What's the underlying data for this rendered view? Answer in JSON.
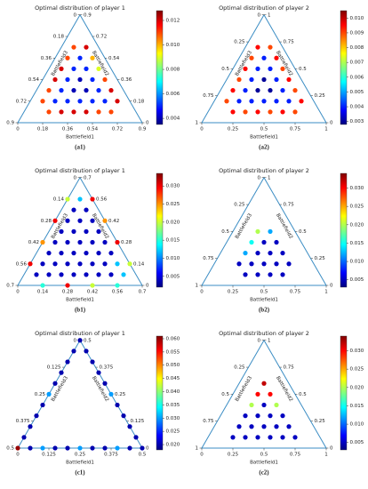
{
  "chart_data": [
    {
      "type": "ternary",
      "title": "Optimal distribution of player 1",
      "panel_label": "(a1)",
      "xlabel": "Battlefield1",
      "rlabel": "Battlefield2",
      "llabel": "Battlefield3",
      "lim": [
        0,
        0.9
      ],
      "ticks": [
        0,
        0.18,
        0.36,
        0.54,
        0.72,
        0.9
      ],
      "clim": [
        0.0035,
        0.0128
      ],
      "cticks": [
        0.004,
        0.006,
        0.008,
        {
          "value": 0.01,
          "label": "0.010"
        },
        0.012
      ],
      "points": [
        [
          0.09,
          0.18,
          0.011
        ],
        [
          0.09,
          0.27,
          0.011
        ],
        [
          0.09,
          0.36,
          0.012
        ],
        [
          0.09,
          0.45,
          0.012
        ],
        [
          0.09,
          0.54,
          0.011
        ],
        [
          0.09,
          0.63,
          0.011
        ],
        [
          0.18,
          0.09,
          0.011
        ],
        [
          0.18,
          0.18,
          0.005
        ],
        [
          0.18,
          0.27,
          0.005
        ],
        [
          0.18,
          0.36,
          0.005
        ],
        [
          0.18,
          0.45,
          0.005
        ],
        [
          0.18,
          0.54,
          0.005
        ],
        [
          0.18,
          0.63,
          0.012
        ],
        [
          0.27,
          0.09,
          0.012
        ],
        [
          0.27,
          0.18,
          0.005
        ],
        [
          0.27,
          0.27,
          0.004
        ],
        [
          0.27,
          0.36,
          0.004
        ],
        [
          0.27,
          0.45,
          0.005
        ],
        [
          0.27,
          0.54,
          0.01
        ],
        [
          0.36,
          0.09,
          0.012
        ],
        [
          0.36,
          0.18,
          0.005
        ],
        [
          0.36,
          0.27,
          0.004
        ],
        [
          0.36,
          0.36,
          0.005
        ],
        [
          0.36,
          0.45,
          0.009
        ],
        [
          0.45,
          0.09,
          0.012
        ],
        [
          0.45,
          0.18,
          0.005
        ],
        [
          0.45,
          0.27,
          0.005
        ],
        [
          0.45,
          0.36,
          0.011
        ],
        [
          0.54,
          0.09,
          0.011
        ],
        [
          0.54,
          0.18,
          0.005
        ],
        [
          0.54,
          0.27,
          0.012
        ],
        [
          0.63,
          0.09,
          0.011
        ],
        [
          0.63,
          0.18,
          0.012
        ]
      ]
    },
    {
      "type": "ternary",
      "title": "Optimal distribution of player 2",
      "panel_label": "(a2)",
      "xlabel": "Battlefield1",
      "rlabel": "Battlefield2",
      "llabel": "Battlefield3",
      "lim": [
        0,
        1
      ],
      "ticks": [
        0,
        0.25,
        0.5,
        0.75,
        1
      ],
      "clim": [
        0.0028,
        0.0105
      ],
      "cticks": [
        0.003,
        0.004,
        0.005,
        0.006,
        0.007,
        0.008,
        0.009,
        {
          "value": 0.01,
          "label": "0.010"
        }
      ],
      "points": [
        [
          0.1,
          0.2,
          0.009
        ],
        [
          0.1,
          0.3,
          0.0095
        ],
        [
          0.1,
          0.4,
          0.009
        ],
        [
          0.1,
          0.5,
          0.0095
        ],
        [
          0.1,
          0.6,
          0.009
        ],
        [
          0.1,
          0.7,
          0.0095
        ],
        [
          0.2,
          0.1,
          0.0095
        ],
        [
          0.2,
          0.2,
          0.004
        ],
        [
          0.2,
          0.3,
          0.004
        ],
        [
          0.2,
          0.4,
          0.004
        ],
        [
          0.2,
          0.5,
          0.004
        ],
        [
          0.2,
          0.6,
          0.004
        ],
        [
          0.2,
          0.7,
          0.009
        ],
        [
          0.3,
          0.1,
          0.009
        ],
        [
          0.3,
          0.2,
          0.004
        ],
        [
          0.3,
          0.3,
          0.003
        ],
        [
          0.3,
          0.4,
          0.003
        ],
        [
          0.3,
          0.5,
          0.004
        ],
        [
          0.3,
          0.6,
          0.0095
        ],
        [
          0.4,
          0.1,
          0.0095
        ],
        [
          0.4,
          0.2,
          0.004
        ],
        [
          0.4,
          0.3,
          0.003
        ],
        [
          0.4,
          0.4,
          0.004
        ],
        [
          0.4,
          0.5,
          0.009
        ],
        [
          0.5,
          0.1,
          0.009
        ],
        [
          0.5,
          0.2,
          0.004
        ],
        [
          0.5,
          0.3,
          0.004
        ],
        [
          0.5,
          0.4,
          0.0095
        ],
        [
          0.6,
          0.1,
          0.0095
        ],
        [
          0.6,
          0.2,
          0.004
        ],
        [
          0.6,
          0.3,
          0.009
        ],
        [
          0.7,
          0.1,
          0.009
        ],
        [
          0.7,
          0.2,
          0.0095
        ]
      ]
    },
    {
      "type": "ternary",
      "title": "Optimal distribution of player 1",
      "panel_label": "(b1)",
      "xlabel": "Battlefield1",
      "rlabel": "Battlefield2",
      "llabel": "Battlefield3",
      "lim": [
        0,
        0.7
      ],
      "ticks": [
        0,
        0.14,
        0.28,
        0.42,
        0.56,
        0.7
      ],
      "clim": [
        0.002,
        0.0335
      ],
      "cticks": [
        0.005,
        {
          "value": 0.01,
          "label": "0.010"
        },
        0.015,
        {
          "value": 0.02,
          "label": "0.020"
        },
        0.025,
        {
          "value": 0.03,
          "label": "0.030"
        }
      ],
      "points": [
        [
          0.07,
          0.07,
          0.004
        ],
        [
          0.07,
          0.14,
          0.004
        ],
        [
          0.07,
          0.21,
          0.004
        ],
        [
          0.07,
          0.28,
          0.004
        ],
        [
          0.07,
          0.35,
          0.004
        ],
        [
          0.07,
          0.42,
          0.004
        ],
        [
          0.07,
          0.49,
          0.004
        ],
        [
          0.07,
          0.56,
          0.012
        ],
        [
          0.14,
          0.07,
          0.004
        ],
        [
          0.14,
          0.14,
          0.004
        ],
        [
          0.14,
          0.21,
          0.004
        ],
        [
          0.14,
          0.28,
          0.004
        ],
        [
          0.14,
          0.35,
          0.004
        ],
        [
          0.14,
          0.42,
          0.004
        ],
        [
          0.14,
          0.49,
          0.004
        ],
        [
          0.21,
          0.07,
          0.004
        ],
        [
          0.21,
          0.14,
          0.004
        ],
        [
          0.21,
          0.21,
          0.004
        ],
        [
          0.21,
          0.28,
          0.004
        ],
        [
          0.21,
          0.35,
          0.004
        ],
        [
          0.21,
          0.42,
          0.004
        ],
        [
          0.28,
          0.07,
          0.004
        ],
        [
          0.28,
          0.14,
          0.004
        ],
        [
          0.28,
          0.21,
          0.004
        ],
        [
          0.28,
          0.28,
          0.004
        ],
        [
          0.28,
          0.35,
          0.004
        ],
        [
          0.35,
          0.07,
          0.004
        ],
        [
          0.35,
          0.14,
          0.004
        ],
        [
          0.35,
          0.21,
          0.004
        ],
        [
          0.35,
          0.28,
          0.004
        ],
        [
          0.42,
          0.07,
          0.004
        ],
        [
          0.42,
          0.14,
          0.004
        ],
        [
          0.42,
          0.21,
          0.004
        ],
        [
          0.49,
          0.07,
          0.004
        ],
        [
          0.49,
          0.14,
          0.012
        ],
        [
          0.56,
          0.07,
          0.012
        ],
        [
          0,
          0.14,
          0.03
        ],
        [
          0,
          0.28,
          0.025
        ],
        [
          0,
          0.42,
          0.03
        ],
        [
          0,
          0.56,
          0.02
        ],
        [
          0.56,
          0.14,
          0.02
        ],
        [
          0.42,
          0.28,
          0.03
        ],
        [
          0.28,
          0.42,
          0.025
        ],
        [
          0.14,
          0.56,
          0.03
        ],
        [
          0.14,
          0,
          0.015
        ],
        [
          0.28,
          0,
          0.03
        ],
        [
          0.42,
          0,
          0.02
        ],
        [
          0.56,
          0,
          0.015
        ]
      ]
    },
    {
      "type": "ternary",
      "title": "Optimal distribution of player 2",
      "panel_label": "(b2)",
      "xlabel": "Battlefield1",
      "rlabel": "Battlefield2",
      "llabel": "Battlefield3",
      "lim": [
        0,
        1
      ],
      "ticks": [
        0,
        0.25,
        0.5,
        0.75,
        1
      ],
      "clim": [
        0.003,
        0.034
      ],
      "cticks": [
        0.005,
        {
          "value": 0.01,
          "label": "0.010"
        },
        0.015,
        {
          "value": 0.02,
          "label": "0.020"
        },
        0.025,
        {
          "value": 0.03,
          "label": "0.030"
        }
      ],
      "points": [
        [
          0.3,
          0.1,
          0.005
        ],
        [
          0.4,
          0.1,
          0.005
        ],
        [
          0.5,
          0.1,
          0.005
        ],
        [
          0.6,
          0.1,
          0.005
        ],
        [
          0.2,
          0.2,
          0.005
        ],
        [
          0.3,
          0.2,
          0.005
        ],
        [
          0.4,
          0.2,
          0.005
        ],
        [
          0.5,
          0.2,
          0.005
        ],
        [
          0.6,
          0.2,
          0.005
        ],
        [
          0.2,
          0.3,
          0.012
        ],
        [
          0.3,
          0.3,
          0.005
        ],
        [
          0.4,
          0.3,
          0.005
        ],
        [
          0.5,
          0.3,
          0.005
        ],
        [
          0.2,
          0.4,
          0.015
        ],
        [
          0.3,
          0.4,
          0.005
        ],
        [
          0.4,
          0.4,
          0.005
        ],
        [
          0.2,
          0.5,
          0.02
        ],
        [
          0.3,
          0.5,
          0.012
        ]
      ]
    },
    {
      "type": "ternary",
      "title": "Optimal distribution of player 1",
      "panel_label": "(c1)",
      "xlabel": "Battlefield1",
      "rlabel": "Battlefield2",
      "llabel": "Battlefield3",
      "lim": [
        0,
        0.5
      ],
      "ticks": [
        0,
        0.125,
        0.25,
        0.375,
        0.5
      ],
      "clim": [
        0.018,
        0.061
      ],
      "cticks": [
        {
          "value": 0.02,
          "label": "0.020"
        },
        0.025,
        {
          "value": 0.03,
          "label": "0.030"
        },
        0.035,
        {
          "value": 0.04,
          "label": "0.040"
        },
        0.045,
        {
          "value": 0.05,
          "label": "0.050"
        },
        0.055,
        {
          "value": 0.06,
          "label": "0.060"
        }
      ],
      "points": [
        [
          0,
          0.05,
          0.02
        ],
        [
          0,
          0.1,
          0.02
        ],
        [
          0,
          0.15,
          0.02
        ],
        [
          0,
          0.2,
          0.02
        ],
        [
          0,
          0.25,
          0.03
        ],
        [
          0,
          0.3,
          0.02
        ],
        [
          0,
          0.35,
          0.02
        ],
        [
          0,
          0.4,
          0.02
        ],
        [
          0,
          0.45,
          0.02
        ],
        [
          0.45,
          0.05,
          0.02
        ],
        [
          0.4,
          0.1,
          0.02
        ],
        [
          0.35,
          0.15,
          0.02
        ],
        [
          0.3,
          0.2,
          0.02
        ],
        [
          0.25,
          0.25,
          0.03
        ],
        [
          0.2,
          0.3,
          0.02
        ],
        [
          0.15,
          0.35,
          0.02
        ],
        [
          0.1,
          0.4,
          0.02
        ],
        [
          0.05,
          0.45,
          0.02
        ],
        [
          0.05,
          0,
          0.02
        ],
        [
          0.1,
          0,
          0.03
        ],
        [
          0.15,
          0,
          0.02
        ],
        [
          0.2,
          0,
          0.02
        ],
        [
          0.25,
          0,
          0.03
        ],
        [
          0.3,
          0,
          0.02
        ],
        [
          0.35,
          0,
          0.02
        ],
        [
          0.4,
          0,
          0.03
        ],
        [
          0.45,
          0,
          0.02
        ],
        [
          0,
          0,
          0.06
        ],
        [
          0.5,
          0,
          0.02
        ],
        [
          0,
          0.5,
          0.02
        ]
      ]
    },
    {
      "type": "ternary",
      "title": "Optimal distribution of player 2",
      "panel_label": "(c2)",
      "xlabel": "Battlefield1",
      "rlabel": "Battlefield2",
      "llabel": "Battlefield3",
      "lim": [
        0,
        1
      ],
      "ticks": [
        0,
        0.25,
        0.5,
        0.75,
        1
      ],
      "clim": [
        0.003,
        0.034
      ],
      "cticks": [
        0.005,
        {
          "value": 0.01,
          "label": "0.010"
        },
        0.015,
        {
          "value": 0.02,
          "label": "0.020"
        },
        0.025,
        {
          "value": 0.03,
          "label": "0.030"
        }
      ],
      "points": [
        [
          0.2,
          0.1,
          0.005
        ],
        [
          0.3,
          0.1,
          0.005
        ],
        [
          0.4,
          0.1,
          0.005
        ],
        [
          0.5,
          0.1,
          0.005
        ],
        [
          0.6,
          0.1,
          0.005
        ],
        [
          0.7,
          0.1,
          0.005
        ],
        [
          0.2,
          0.2,
          0.005
        ],
        [
          0.3,
          0.2,
          0.005
        ],
        [
          0.4,
          0.2,
          0.005
        ],
        [
          0.5,
          0.2,
          0.005
        ],
        [
          0.6,
          0.2,
          0.005
        ],
        [
          0.2,
          0.3,
          0.005
        ],
        [
          0.3,
          0.3,
          0.005
        ],
        [
          0.4,
          0.3,
          0.005
        ],
        [
          0.5,
          0.3,
          0.005
        ],
        [
          0.2,
          0.4,
          0.02
        ],
        [
          0.3,
          0.4,
          0.005
        ],
        [
          0.4,
          0.4,
          0.02
        ],
        [
          0.2,
          0.5,
          0.03
        ],
        [
          0.3,
          0.5,
          0.03
        ],
        [
          0.2,
          0.6,
          0.032
        ]
      ]
    }
  ]
}
